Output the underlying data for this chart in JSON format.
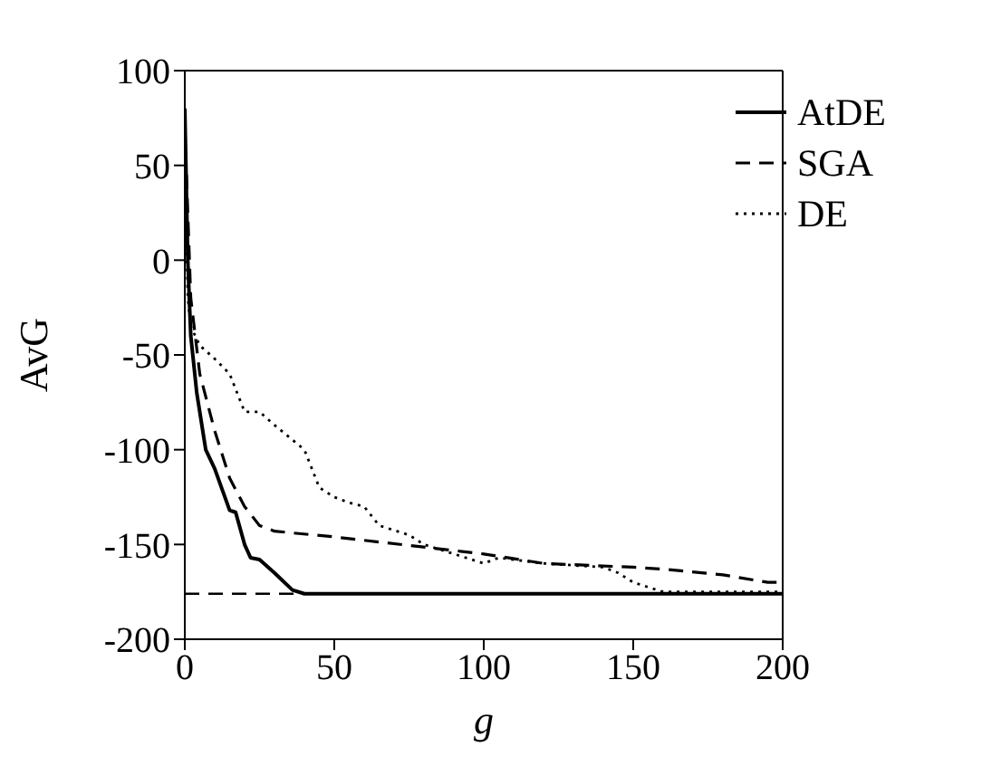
{
  "chart_data": {
    "type": "line",
    "xlabel": "g",
    "ylabel": "AvG",
    "xlim": [
      0,
      200
    ],
    "ylim": [
      -200,
      100
    ],
    "xticks": [
      0,
      50,
      100,
      150,
      200
    ],
    "yticks": [
      -200,
      -150,
      -100,
      -50,
      0,
      50,
      100
    ],
    "legend": "top right",
    "marker": "none",
    "ref_lines": [
      {
        "axis": "y",
        "value": -176,
        "color": "#000000",
        "line_style": "dashed"
      }
    ],
    "series": [
      {
        "name": "AtDE",
        "color": "#000000",
        "line_style": "solid",
        "x": [
          0,
          1,
          2,
          4,
          7,
          10,
          15,
          17,
          20,
          22,
          25,
          30,
          36,
          40,
          50,
          200
        ],
        "values": [
          80,
          0,
          -40,
          -70,
          -100,
          -110,
          -132,
          -133,
          -150,
          -157,
          -158,
          -165,
          -174,
          -176,
          -176,
          -176
        ]
      },
      {
        "name": "SGA",
        "color": "#000000",
        "line_style": "dashed",
        "x": [
          0,
          2,
          5,
          10,
          15,
          20,
          25,
          30,
          50,
          100,
          120,
          150,
          160,
          180,
          195,
          200
        ],
        "values": [
          70,
          -20,
          -60,
          -90,
          -115,
          -130,
          -140,
          -143,
          -146,
          -155,
          -160,
          -162,
          -163,
          -166,
          -170,
          -170
        ]
      },
      {
        "name": "DE",
        "color": "#000000",
        "line_style": "dotted",
        "x": [
          0,
          1,
          2,
          5,
          10,
          15,
          20,
          25,
          30,
          40,
          45,
          50,
          55,
          60,
          65,
          75,
          80,
          100,
          105,
          120,
          140,
          145,
          150,
          160,
          200
        ],
        "values": [
          60,
          -20,
          -35,
          -45,
          -52,
          -60,
          -80,
          -80,
          -87,
          -100,
          -120,
          -125,
          -128,
          -130,
          -140,
          -145,
          -150,
          -160,
          -157,
          -160,
          -162,
          -165,
          -170,
          -175,
          -175
        ]
      }
    ]
  }
}
